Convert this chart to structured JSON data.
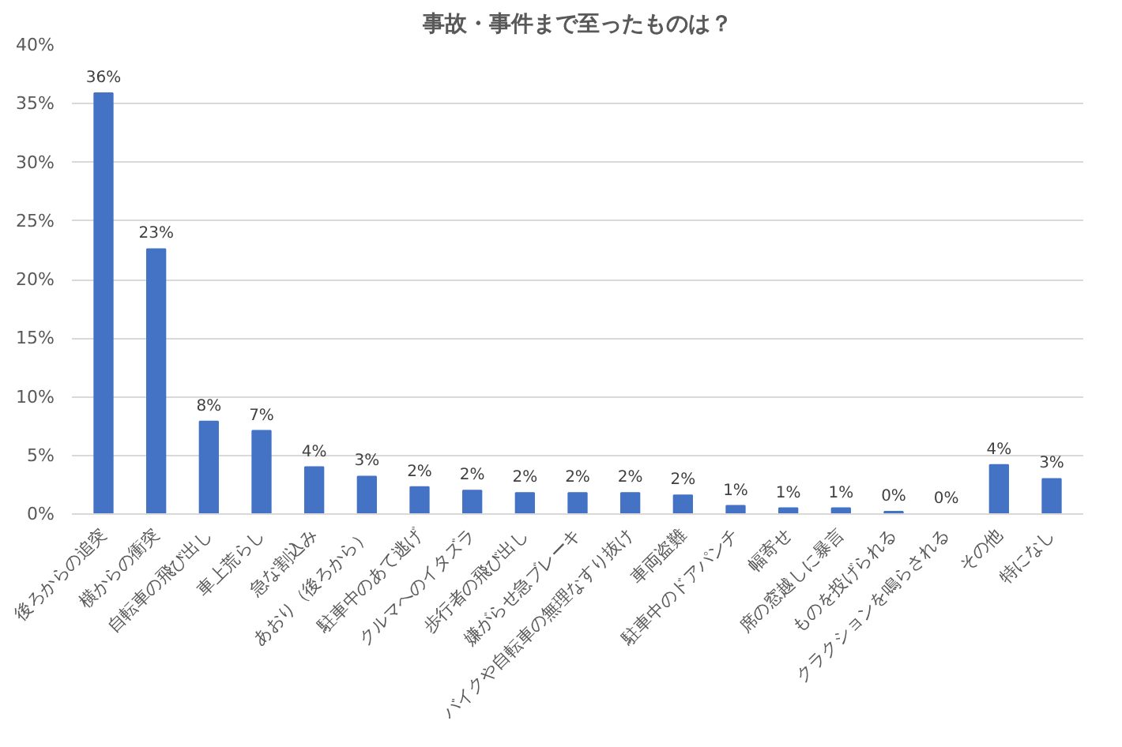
{
  "chart_data": {
    "type": "bar",
    "title": "事故・事件まで至ったものは？",
    "categories": [
      "後ろからの追突",
      "横からの衝突",
      "自転車の飛び出し",
      "車上荒らし",
      "急な割込み",
      "あおり（後ろから）",
      "駐車中のあて逃げ",
      "クルマへのイタズラ",
      "歩行者の飛び出し",
      "嫌がらせ急ブレーキ",
      "バイクや自転車の無理なすり抜け",
      "車両盗難",
      "駐車中のドアパンチ",
      "幅寄せ",
      "席の窓越しに暴言",
      "ものを投げられる",
      "クラクションを鳴らされる",
      "その他",
      "特になし"
    ],
    "values": [
      35.9,
      22.6,
      7.9,
      7.1,
      4.0,
      3.2,
      2.3,
      2.0,
      1.8,
      1.8,
      1.8,
      1.6,
      0.7,
      0.5,
      0.5,
      0.2,
      0,
      4.2,
      3.0
    ],
    "value_labels": [
      "36%",
      "23%",
      "8%",
      "7%",
      "4%",
      "3%",
      "2%",
      "2%",
      "2%",
      "2%",
      "2%",
      "2%",
      "1%",
      "1%",
      "1%",
      "0%",
      "0%",
      "4%",
      "3%"
    ],
    "color": "#4472c4",
    "grid": "y",
    "ylim": [
      0,
      40
    ],
    "yticks": [
      {
        "value": 0,
        "label": "0%"
      },
      {
        "value": 5,
        "label": "5%"
      },
      {
        "value": 10,
        "label": "10%"
      },
      {
        "value": 15,
        "label": "15%"
      },
      {
        "value": 20,
        "label": "20%"
      },
      {
        "value": 25,
        "label": "25%"
      },
      {
        "value": 30,
        "label": "30%"
      },
      {
        "value": 35,
        "label": "35%"
      },
      {
        "value": 40,
        "label": "40%"
      }
    ]
  }
}
